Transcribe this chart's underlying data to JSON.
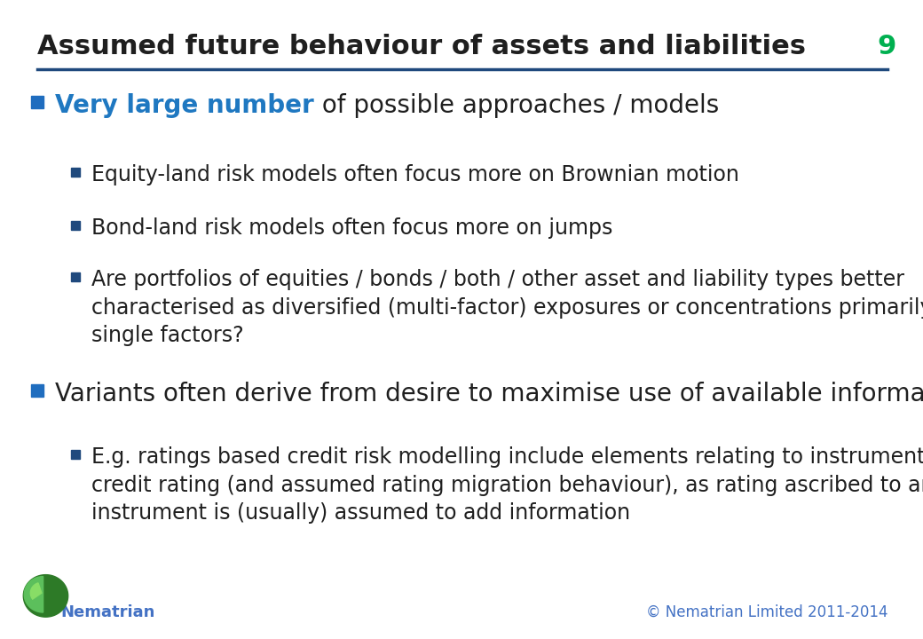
{
  "title": "Assumed future behaviour of assets and liabilities",
  "slide_number": "9",
  "title_color": "#1F1F1F",
  "title_font_size": 22,
  "slide_number_color": "#00B050",
  "header_line_color": "#1F497D",
  "background_color": "#FFFFFF",
  "l1_bullet_color": "#1F6DBF",
  "l2_bullet_color": "#1F497D",
  "footer_text_left": "Nematrian",
  "footer_text_right": "© Nematrian Limited 2011-2014",
  "footer_color": "#4472C4",
  "bullets": [
    {
      "level": 1,
      "parts": [
        {
          "text": "Very large number",
          "bold": true,
          "color": "#1F78C1"
        },
        {
          "text": " of possible approaches / models",
          "bold": false,
          "color": "#1F1F1F"
        }
      ]
    },
    {
      "level": 2,
      "parts": [
        {
          "text": "Equity-land risk models often focus more on Brownian motion",
          "bold": false,
          "color": "#1F1F1F"
        }
      ]
    },
    {
      "level": 2,
      "parts": [
        {
          "text": "Bond-land risk models often focus more on jumps",
          "bold": false,
          "color": "#1F1F1F"
        }
      ]
    },
    {
      "level": 2,
      "parts": [
        {
          "text": "Are portfolios of equities / bonds / both / other asset and liability types better\ncharacterised as diversified (multi-factor) exposures or concentrations primarily to\nsingle factors?",
          "bold": false,
          "color": "#1F1F1F"
        }
      ]
    },
    {
      "level": 1,
      "parts": [
        {
          "text": "Variants often derive from desire to maximise use of available information",
          "bold": false,
          "color": "#1F1F1F"
        }
      ]
    },
    {
      "level": 2,
      "parts": [
        {
          "text": "E.g. ratings based credit risk modelling include elements relating to instrument\ncredit rating (and assumed rating migration behaviour), as rating ascribed to an\ninstrument is (usually) assumed to add information",
          "bold": false,
          "color": "#1F1F1F"
        }
      ]
    }
  ],
  "l1_font_size": 20,
  "l2_font_size": 17
}
